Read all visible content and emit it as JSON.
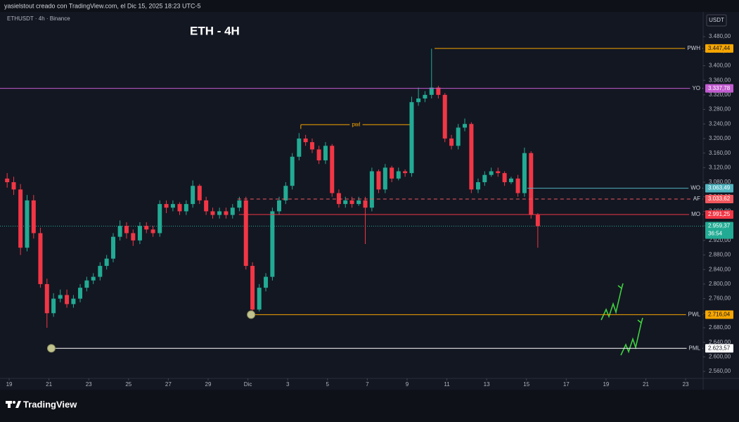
{
  "header": "yasielstout creado con TradingView.com, el Dic 15, 2025 18:23 UTC-5",
  "footer": "TradingView",
  "chart_data": {
    "type": "candlestick",
    "title": "ETH - 4H",
    "symbol": "ETHUSDT · 4h · Binance",
    "currency": "USDT",
    "up_color": "#22ab94",
    "down_color": "#f23645",
    "x": [
      18.9,
      19.23,
      19.57,
      19.9,
      20.23,
      20.57,
      20.9,
      21.23,
      21.57,
      21.9,
      22.23,
      22.57,
      22.9,
      23.23,
      23.57,
      23.9,
      24.23,
      24.57,
      24.9,
      25.23,
      25.57,
      25.9,
      26.23,
      26.57,
      26.9,
      27.23,
      27.57,
      27.9,
      28.23,
      28.57,
      28.9,
      29.23,
      29.57,
      29.9,
      30.23,
      30.57,
      30.9,
      31.23,
      31.57,
      31.9,
      32.23,
      32.57,
      32.9,
      33.23,
      33.57,
      33.9,
      34.23,
      34.57,
      34.9,
      35.23,
      35.57,
      35.9,
      36.23,
      36.57,
      36.9,
      37.23,
      37.57,
      37.9,
      38.23,
      38.57,
      38.9,
      39.23,
      39.57,
      39.9,
      40.23,
      40.57,
      40.9,
      41.23,
      41.57,
      41.9,
      42.23,
      42.57,
      42.9,
      43.23,
      43.57,
      43.9,
      44.23,
      44.57,
      44.9,
      45.23,
      45.57
    ],
    "open": [
      3090,
      3080,
      3060,
      2900,
      3030,
      2940,
      2800,
      2720,
      2760,
      2770,
      2745,
      2760,
      2790,
      2810,
      2820,
      2850,
      2870,
      2930,
      2960,
      2940,
      2920,
      2960,
      2950,
      2940,
      3020,
      3010,
      3020,
      3000,
      3020,
      3070,
      3030,
      3000,
      2990,
      3000,
      2990,
      3010,
      3030,
      2850,
      2730,
      2790,
      2820,
      3000,
      3030,
      3070,
      3150,
      3200,
      3190,
      3170,
      3140,
      3180,
      3050,
      3020,
      3030,
      3020,
      3030,
      3010,
      3110,
      3060,
      3120,
      3090,
      3110,
      3105,
      3300,
      3310,
      3320,
      3340,
      3320,
      3200,
      3180,
      3230,
      3240,
      3060,
      3080,
      3100,
      3110,
      3105,
      3080,
      3090,
      3050,
      3160,
      2990
    ],
    "high": [
      3105,
      3095,
      3075,
      3045,
      3045,
      2955,
      2815,
      2775,
      2785,
      2785,
      2770,
      2800,
      2820,
      2830,
      2860,
      2880,
      2940,
      2975,
      2970,
      2950,
      2970,
      2970,
      2960,
      3030,
      3030,
      3030,
      3025,
      3030,
      3085,
      3075,
      3040,
      3010,
      3010,
      3010,
      3020,
      3040,
      3040,
      2860,
      2800,
      2830,
      3010,
      3040,
      3080,
      3160,
      3215,
      3210,
      3200,
      3180,
      3190,
      3185,
      3060,
      3040,
      3040,
      3040,
      3040,
      3120,
      3115,
      3130,
      3125,
      3120,
      3115,
      3315,
      3340,
      3330,
      3447,
      3345,
      3325,
      3210,
      3240,
      3255,
      3245,
      3090,
      3110,
      3120,
      3120,
      3110,
      3095,
      3100,
      3175,
      3165,
      2995
    ],
    "low": [
      3065,
      3045,
      2880,
      2890,
      2925,
      2790,
      2680,
      2710,
      2750,
      2735,
      2735,
      2750,
      2780,
      2800,
      2810,
      2840,
      2860,
      2920,
      2925,
      2905,
      2910,
      2940,
      2930,
      2930,
      2995,
      3000,
      2990,
      2990,
      3010,
      3020,
      2990,
      2980,
      2980,
      2980,
      2980,
      3000,
      2840,
      2716,
      2725,
      2780,
      2810,
      2990,
      3020,
      3060,
      3140,
      3180,
      3160,
      3130,
      3130,
      3040,
      3010,
      3010,
      3010,
      3015,
      2910,
      3000,
      3050,
      3050,
      3080,
      3085,
      3095,
      3095,
      3290,
      3300,
      3310,
      3310,
      3190,
      3170,
      3170,
      3220,
      3050,
      3050,
      3070,
      3095,
      3095,
      3070,
      3075,
      3040,
      3040,
      2980,
      2900
    ],
    "close": [
      3080,
      3060,
      2900,
      3030,
      2940,
      2800,
      2720,
      2760,
      2770,
      2745,
      2760,
      2790,
      2810,
      2820,
      2850,
      2870,
      2930,
      2960,
      2940,
      2920,
      2960,
      2950,
      2940,
      3020,
      3010,
      3020,
      3000,
      3020,
      3070,
      3030,
      3000,
      2990,
      3000,
      2990,
      3010,
      3030,
      2850,
      2730,
      2790,
      2820,
      3000,
      3030,
      3070,
      3150,
      3200,
      3190,
      3170,
      3140,
      3180,
      3050,
      3020,
      3030,
      3020,
      3030,
      3010,
      3110,
      3060,
      3120,
      3090,
      3110,
      3105,
      3300,
      3310,
      3320,
      3340,
      3320,
      3200,
      3180,
      3230,
      3240,
      3060,
      3080,
      3100,
      3110,
      3105,
      3080,
      3090,
      3050,
      3160,
      2990,
      2959.37
    ],
    "xlim": [
      18.54,
      53.88
    ],
    "xticks": [
      19,
      21,
      23,
      25,
      27,
      29,
      {
        "value": 31,
        "label": "Dic"
      },
      {
        "value": 33,
        "label": "3"
      },
      {
        "value": 35,
        "label": "5"
      },
      {
        "value": 37,
        "label": "7"
      },
      {
        "value": 39,
        "label": "9"
      },
      {
        "value": 41,
        "label": "11"
      },
      {
        "value": 43,
        "label": "13"
      },
      {
        "value": 45,
        "label": "15"
      },
      {
        "value": 47,
        "label": "17"
      },
      {
        "value": 49,
        "label": "19"
      },
      {
        "value": 51,
        "label": "21"
      },
      {
        "value": 53,
        "label": "23"
      }
    ],
    "ylim": [
      2537,
      3542
    ],
    "yticks": [
      {
        "value": 2560,
        "label": "2.560,00"
      },
      {
        "value": 2600,
        "label": "2.600,00"
      },
      {
        "value": 2640,
        "label": "2.640,00"
      },
      {
        "value": 2680,
        "label": "2.680,00"
      },
      {
        "value": 2720,
        "label": "2.720,00"
      },
      {
        "value": 2760,
        "label": "2.760,00"
      },
      {
        "value": 2800,
        "label": "2.800,00"
      },
      {
        "value": 2840,
        "label": "2.840,00"
      },
      {
        "value": 2880,
        "label": "2.880,00"
      },
      {
        "value": 2920,
        "label": "2.920,00"
      },
      {
        "value": 2960,
        "label": "2.960,00"
      },
      {
        "value": 3000,
        "label": "3.000,00"
      },
      {
        "value": 3040,
        "label": "3.040,00"
      },
      {
        "value": 3080,
        "label": "3.080,00"
      },
      {
        "value": 3120,
        "label": "3.120,00"
      },
      {
        "value": 3160,
        "label": "3.160,00"
      },
      {
        "value": 3200,
        "label": "3.200,00"
      },
      {
        "value": 3240,
        "label": "3.240,00"
      },
      {
        "value": 3280,
        "label": "3.280,00"
      },
      {
        "value": 3320,
        "label": "3.320,00"
      },
      {
        "value": 3360,
        "label": "3.360,00"
      },
      {
        "value": 3400,
        "label": "3.400,00"
      },
      {
        "value": 3440,
        "label": "3.440,00"
      },
      {
        "value": 3480,
        "label": "3.480,00"
      }
    ],
    "levels": [
      {
        "name": "PWH",
        "value": 3447.44,
        "label": "3.447,44",
        "start": 40.38,
        "color": "#f7a600",
        "text_color": "#131722",
        "dash": false
      },
      {
        "name": "YO",
        "value": 3337.78,
        "label": "3.337,78",
        "start": 18.54,
        "color": "#c25bd0",
        "text_color": "#ffffff",
        "dash": false
      },
      {
        "name": "WO",
        "value": 3063.49,
        "label": "3.063,49",
        "start": 45.04,
        "color": "#4fb3bf",
        "text_color": "#ffffff",
        "dash": false
      },
      {
        "name": "AF",
        "value": 3033.62,
        "label": "3.033,62",
        "start": 30.48,
        "color": "#f2575d",
        "text_color": "#ffffff",
        "dash": true
      },
      {
        "name": "MO",
        "value": 2991.25,
        "label": "2.991,25",
        "start": 30.55,
        "color": "#f23645",
        "text_color": "#ffffff",
        "dash": false
      },
      {
        "name": "PWL",
        "value": 2716.04,
        "label": "2.716,04",
        "start": 31.16,
        "color": "#f7a600",
        "text_color": "#131722",
        "dash": false,
        "dot": true
      },
      {
        "name": "PML",
        "value": 2623.57,
        "label": "2.623,57",
        "start": 21.12,
        "color": "#ffffff",
        "text_color": "#131722",
        "dash": false,
        "dot": true
      }
    ],
    "annotation": {
      "text": "pwl",
      "value": 3238,
      "start": 33.66,
      "end": 39.21,
      "color": "#f7a600"
    },
    "last": {
      "value": 2959.37,
      "label": "2.959,37",
      "countdown": "36:54",
      "color": "#22ab94"
    }
  }
}
